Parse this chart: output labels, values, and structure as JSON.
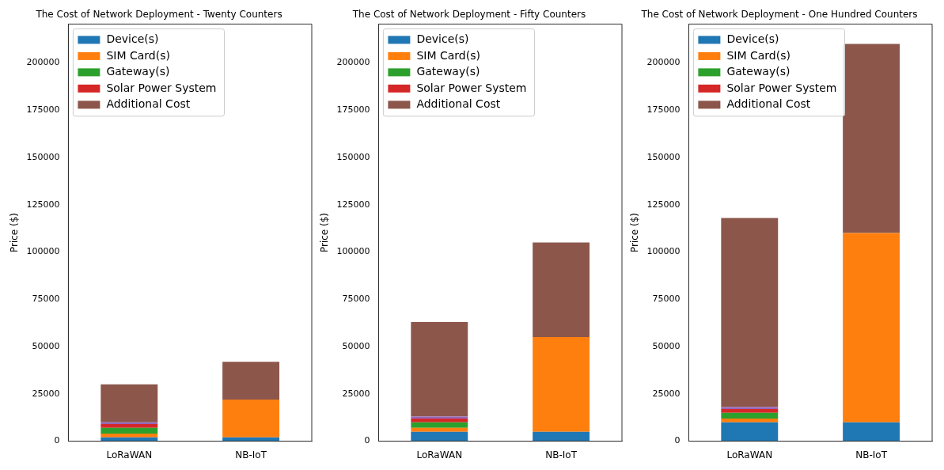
{
  "chart_data": [
    {
      "type": "bar",
      "title": "The Cost of Network Deployment - Twenty Counters",
      "ylabel": "Price ($)",
      "categories": [
        "LoRaWAN",
        "NB-IoT"
      ],
      "stacked": true,
      "legend": "top left",
      "grid": false,
      "ylim": [
        0,
        220500
      ],
      "yticks": [
        0,
        25000,
        50000,
        75000,
        100000,
        125000,
        150000,
        175000,
        200000
      ],
      "series": [
        {
          "name": "Device(s)",
          "color": "#1f77b4",
          "values": [
            2000,
            2000
          ]
        },
        {
          "name": "SIM Card(s)",
          "color": "#ff7f0e",
          "values": [
            2000,
            20000
          ]
        },
        {
          "name": "Gateway(s)",
          "color": "#2ca02c",
          "values": [
            3000,
            0
          ]
        },
        {
          "name": "Solar Power System",
          "color": "#d62728",
          "values": [
            2000,
            0
          ]
        },
        {
          "color": "#9467bd",
          "values": [
            1000,
            0
          ]
        },
        {
          "name": "Additional Cost",
          "color": "#8c564b",
          "values": [
            20000,
            20000
          ]
        }
      ]
    },
    {
      "type": "bar",
      "title": "The Cost of Network Deployment - Fifty Counters",
      "ylabel": "Price ($)",
      "categories": [
        "LoRaWAN",
        "NB-IoT"
      ],
      "stacked": true,
      "legend": "top left",
      "grid": false,
      "ylim": [
        0,
        220500
      ],
      "yticks": [
        0,
        25000,
        50000,
        75000,
        100000,
        125000,
        150000,
        175000,
        200000
      ],
      "series": [
        {
          "name": "Device(s)",
          "color": "#1f77b4",
          "values": [
            5000,
            5000
          ]
        },
        {
          "name": "SIM Card(s)",
          "color": "#ff7f0e",
          "values": [
            2000,
            50000
          ]
        },
        {
          "name": "Gateway(s)",
          "color": "#2ca02c",
          "values": [
            3000,
            0
          ]
        },
        {
          "name": "Solar Power System",
          "color": "#d62728",
          "values": [
            2000,
            0
          ]
        },
        {
          "color": "#9467bd",
          "values": [
            1000,
            0
          ]
        },
        {
          "name": "Additional Cost",
          "color": "#8c564b",
          "values": [
            50000,
            50000
          ]
        }
      ]
    },
    {
      "type": "bar",
      "title": "The Cost of Network Deployment - One Hundred Counters",
      "ylabel": "Price ($)",
      "categories": [
        "LoRaWAN",
        "NB-IoT"
      ],
      "stacked": true,
      "legend": "top left",
      "grid": false,
      "ylim": [
        0,
        220500
      ],
      "yticks": [
        0,
        25000,
        50000,
        75000,
        100000,
        125000,
        150000,
        175000,
        200000
      ],
      "series": [
        {
          "name": "Device(s)",
          "color": "#1f77b4",
          "values": [
            10000,
            10000
          ]
        },
        {
          "name": "SIM Card(s)",
          "color": "#ff7f0e",
          "values": [
            2000,
            100000
          ]
        },
        {
          "name": "Gateway(s)",
          "color": "#2ca02c",
          "values": [
            3000,
            0
          ]
        },
        {
          "name": "Solar Power System",
          "color": "#d62728",
          "values": [
            2000,
            0
          ]
        },
        {
          "color": "#9467bd",
          "values": [
            1000,
            0
          ]
        },
        {
          "name": "Additional Cost",
          "color": "#8c564b",
          "values": [
            100000,
            100000
          ]
        }
      ]
    }
  ]
}
